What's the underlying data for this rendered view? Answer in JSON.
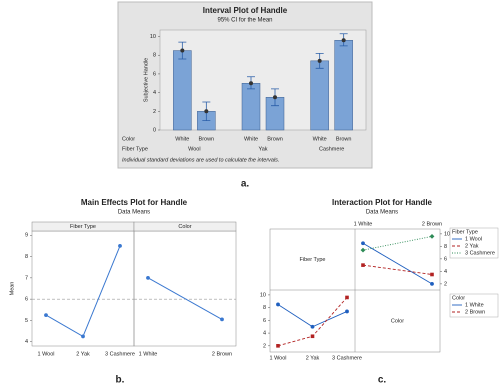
{
  "chart_data": [
    {
      "type": "interval",
      "title": "Interval Plot of Handle",
      "subtitle": "95% CI for the Mean",
      "ylabel": "Subjective Handle",
      "row_labels": [
        "Color",
        "Fiber Type"
      ],
      "categories": [
        "White",
        "Brown",
        "White",
        "Brown",
        "White",
        "Brown"
      ],
      "groups": [
        "Wool",
        "Yak",
        "Cashmere"
      ],
      "values": [
        8.5,
        2.0,
        5.0,
        3.5,
        7.4,
        9.6
      ],
      "ci_low": [
        7.6,
        1.0,
        4.4,
        2.6,
        6.6,
        9.0
      ],
      "ci_high": [
        9.4,
        3.0,
        5.7,
        4.4,
        8.2,
        10.3
      ],
      "ylim": [
        0,
        10.7
      ],
      "yticks": [
        0,
        2,
        4,
        6,
        8,
        10
      ],
      "color": "#7ba3d6",
      "note": "Individual standard deviations are used to calculate the intervals.",
      "caption": "a."
    },
    {
      "type": "main_effects",
      "title": "Main Effects Plot for Handle",
      "subtitle": "Data Means",
      "ylabel": "Mean",
      "panels": [
        {
          "title": "Fiber Type",
          "categories": [
            "1 Wool",
            "2 Yak",
            "3 Cashmere"
          ],
          "values": [
            5.25,
            4.25,
            8.5
          ]
        },
        {
          "title": "Color",
          "categories": [
            "1 White",
            "2 Brown"
          ],
          "values": [
            7.0,
            5.05
          ]
        }
      ],
      "reference": 6.0,
      "color": "#3a78d0",
      "ylim": [
        3.8,
        9.2
      ],
      "yticks": [
        4,
        5,
        6,
        7,
        8,
        9
      ],
      "caption": "b."
    },
    {
      "type": "interaction",
      "title": "Interaction Plot for Handle",
      "subtitle": "Data Means",
      "cells": [
        "Fiber Type",
        "Color"
      ],
      "panels": [
        {
          "legend_title": "Fiber Type",
          "categories": [
            "1 White",
            "2 Brown"
          ],
          "series": [
            {
              "name": "1 Wool",
              "color": "#1f5fbf",
              "dash": "solid",
              "marker": "circle",
              "values": [
                8.5,
                2.0
              ]
            },
            {
              "name": "2 Yak",
              "color": "#b22222",
              "dash": "dashed",
              "marker": "square",
              "values": [
                5.0,
                3.5
              ]
            },
            {
              "name": "3 Cashmere",
              "color": "#2e8b57",
              "dash": "dotted",
              "marker": "diamond",
              "values": [
                7.4,
                9.6
              ]
            }
          ]
        },
        {
          "legend_title": "Color",
          "categories": [
            "1 Wool",
            "2 Yak",
            "3 Cashmere"
          ],
          "series": [
            {
              "name": "1 White",
              "color": "#1f5fbf",
              "dash": "solid",
              "marker": "circle",
              "values": [
                8.5,
                5.0,
                7.4
              ]
            },
            {
              "name": "2 Brown",
              "color": "#b22222",
              "dash": "dashed",
              "marker": "square",
              "values": [
                2.0,
                3.5,
                9.6
              ]
            }
          ]
        }
      ],
      "ylim": [
        1.5,
        10.3
      ],
      "yticks": [
        2,
        4,
        6,
        8,
        10
      ],
      "caption": "c."
    }
  ]
}
